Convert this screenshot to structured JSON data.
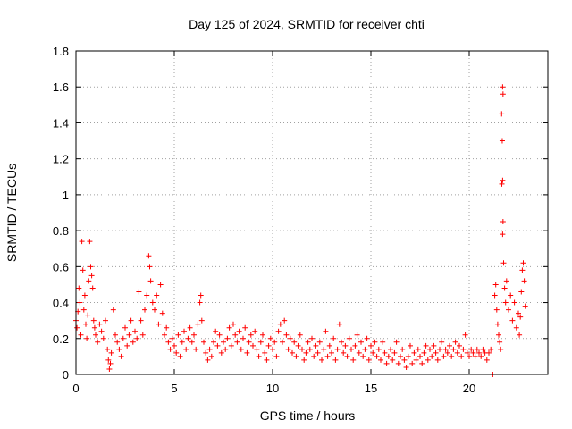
{
  "chart_data": {
    "type": "scatter",
    "title": "Day 125 of 2024, SRMTID for receiver chti",
    "xlabel": "GPS time / hours",
    "ylabel": "SRMTID / TECUs",
    "xlim": [
      0,
      24
    ],
    "ylim": [
      0,
      1.8
    ],
    "xticks": [
      "0",
      "5",
      "10",
      "15",
      "20"
    ],
    "xtick_values": [
      0,
      5,
      10,
      15,
      20
    ],
    "yticks": [
      "0",
      "0.2",
      "0.4",
      "0.6",
      "0.8",
      "1",
      "1.2",
      "1.4",
      "1.6",
      "1.8"
    ],
    "ytick_values": [
      0,
      0.2,
      0.4,
      0.6,
      0.8,
      1.0,
      1.2,
      1.4,
      1.6,
      1.8
    ],
    "grid": true,
    "marker": "+",
    "color": "#ff0000",
    "series": [
      {
        "name": "SRMTID",
        "points": [
          [
            0.0,
            0.3
          ],
          [
            0.05,
            0.26
          ],
          [
            0.1,
            0.35
          ],
          [
            0.15,
            0.48
          ],
          [
            0.2,
            0.4
          ],
          [
            0.25,
            0.22
          ],
          [
            0.3,
            0.74
          ],
          [
            0.35,
            0.58
          ],
          [
            0.4,
            0.36
          ],
          [
            0.45,
            0.44
          ],
          [
            0.5,
            0.28
          ],
          [
            0.55,
            0.2
          ],
          [
            0.6,
            0.33
          ],
          [
            0.65,
            0.52
          ],
          [
            0.7,
            0.74
          ],
          [
            0.75,
            0.6
          ],
          [
            0.8,
            0.55
          ],
          [
            0.85,
            0.48
          ],
          [
            0.9,
            0.3
          ],
          [
            0.95,
            0.26
          ],
          [
            1.0,
            0.22
          ],
          [
            1.1,
            0.18
          ],
          [
            1.2,
            0.28
          ],
          [
            1.3,
            0.24
          ],
          [
            1.4,
            0.2
          ],
          [
            1.5,
            0.3
          ],
          [
            1.6,
            0.14
          ],
          [
            1.65,
            0.08
          ],
          [
            1.7,
            0.03
          ],
          [
            1.75,
            0.06
          ],
          [
            1.8,
            0.12
          ],
          [
            1.9,
            0.36
          ],
          [
            2.0,
            0.22
          ],
          [
            2.1,
            0.18
          ],
          [
            2.2,
            0.14
          ],
          [
            2.3,
            0.1
          ],
          [
            2.4,
            0.2
          ],
          [
            2.5,
            0.26
          ],
          [
            2.6,
            0.16
          ],
          [
            2.7,
            0.22
          ],
          [
            2.8,
            0.3
          ],
          [
            2.9,
            0.18
          ],
          [
            3.0,
            0.24
          ],
          [
            3.1,
            0.2
          ],
          [
            3.2,
            0.46
          ],
          [
            3.3,
            0.3
          ],
          [
            3.4,
            0.22
          ],
          [
            3.5,
            0.36
          ],
          [
            3.6,
            0.44
          ],
          [
            3.7,
            0.66
          ],
          [
            3.75,
            0.6
          ],
          [
            3.8,
            0.52
          ],
          [
            3.9,
            0.4
          ],
          [
            4.0,
            0.36
          ],
          [
            4.1,
            0.44
          ],
          [
            4.2,
            0.28
          ],
          [
            4.3,
            0.5
          ],
          [
            4.4,
            0.34
          ],
          [
            4.5,
            0.22
          ],
          [
            4.6,
            0.26
          ],
          [
            4.7,
            0.18
          ],
          [
            4.8,
            0.14
          ],
          [
            4.9,
            0.2
          ],
          [
            5.0,
            0.16
          ],
          [
            5.1,
            0.12
          ],
          [
            5.2,
            0.22
          ],
          [
            5.3,
            0.1
          ],
          [
            5.4,
            0.18
          ],
          [
            5.5,
            0.24
          ],
          [
            5.6,
            0.14
          ],
          [
            5.7,
            0.2
          ],
          [
            5.8,
            0.26
          ],
          [
            5.9,
            0.18
          ],
          [
            6.0,
            0.22
          ],
          [
            6.1,
            0.14
          ],
          [
            6.2,
            0.28
          ],
          [
            6.3,
            0.4
          ],
          [
            6.35,
            0.44
          ],
          [
            6.4,
            0.3
          ],
          [
            6.5,
            0.18
          ],
          [
            6.6,
            0.12
          ],
          [
            6.7,
            0.08
          ],
          [
            6.8,
            0.14
          ],
          [
            6.9,
            0.1
          ],
          [
            7.0,
            0.18
          ],
          [
            7.1,
            0.24
          ],
          [
            7.2,
            0.16
          ],
          [
            7.3,
            0.22
          ],
          [
            7.4,
            0.12
          ],
          [
            7.5,
            0.18
          ],
          [
            7.6,
            0.14
          ],
          [
            7.7,
            0.2
          ],
          [
            7.8,
            0.26
          ],
          [
            7.9,
            0.16
          ],
          [
            8.0,
            0.28
          ],
          [
            8.1,
            0.22
          ],
          [
            8.2,
            0.18
          ],
          [
            8.3,
            0.24
          ],
          [
            8.4,
            0.14
          ],
          [
            8.5,
            0.2
          ],
          [
            8.6,
            0.26
          ],
          [
            8.7,
            0.12
          ],
          [
            8.8,
            0.18
          ],
          [
            8.9,
            0.22
          ],
          [
            9.0,
            0.16
          ],
          [
            9.1,
            0.24
          ],
          [
            9.2,
            0.14
          ],
          [
            9.3,
            0.1
          ],
          [
            9.4,
            0.18
          ],
          [
            9.5,
            0.22
          ],
          [
            9.6,
            0.12
          ],
          [
            9.7,
            0.08
          ],
          [
            9.8,
            0.16
          ],
          [
            9.9,
            0.2
          ],
          [
            10.0,
            0.14
          ],
          [
            10.1,
            0.18
          ],
          [
            10.2,
            0.1
          ],
          [
            10.3,
            0.24
          ],
          [
            10.4,
            0.28
          ],
          [
            10.5,
            0.18
          ],
          [
            10.6,
            0.3
          ],
          [
            10.7,
            0.22
          ],
          [
            10.8,
            0.14
          ],
          [
            10.9,
            0.2
          ],
          [
            11.0,
            0.12
          ],
          [
            11.1,
            0.18
          ],
          [
            11.2,
            0.1
          ],
          [
            11.3,
            0.16
          ],
          [
            11.4,
            0.22
          ],
          [
            11.5,
            0.14
          ],
          [
            11.6,
            0.08
          ],
          [
            11.7,
            0.12
          ],
          [
            11.8,
            0.18
          ],
          [
            11.9,
            0.14
          ],
          [
            12.0,
            0.2
          ],
          [
            12.1,
            0.1
          ],
          [
            12.2,
            0.16
          ],
          [
            12.3,
            0.12
          ],
          [
            12.4,
            0.18
          ],
          [
            12.5,
            0.08
          ],
          [
            12.6,
            0.14
          ],
          [
            12.7,
            0.24
          ],
          [
            12.8,
            0.1
          ],
          [
            12.9,
            0.16
          ],
          [
            13.0,
            0.12
          ],
          [
            13.1,
            0.2
          ],
          [
            13.2,
            0.08
          ],
          [
            13.3,
            0.14
          ],
          [
            13.4,
            0.28
          ],
          [
            13.5,
            0.18
          ],
          [
            13.6,
            0.12
          ],
          [
            13.7,
            0.16
          ],
          [
            13.8,
            0.1
          ],
          [
            13.9,
            0.2
          ],
          [
            14.0,
            0.14
          ],
          [
            14.1,
            0.08
          ],
          [
            14.2,
            0.16
          ],
          [
            14.3,
            0.22
          ],
          [
            14.4,
            0.12
          ],
          [
            14.5,
            0.18
          ],
          [
            14.6,
            0.1
          ],
          [
            14.7,
            0.14
          ],
          [
            14.8,
            0.2
          ],
          [
            14.9,
            0.08
          ],
          [
            15.0,
            0.16
          ],
          [
            15.1,
            0.12
          ],
          [
            15.2,
            0.18
          ],
          [
            15.3,
            0.1
          ],
          [
            15.4,
            0.14
          ],
          [
            15.5,
            0.08
          ],
          [
            15.6,
            0.18
          ],
          [
            15.7,
            0.12
          ],
          [
            15.8,
            0.06
          ],
          [
            15.9,
            0.1
          ],
          [
            16.0,
            0.14
          ],
          [
            16.1,
            0.08
          ],
          [
            16.2,
            0.12
          ],
          [
            16.3,
            0.18
          ],
          [
            16.4,
            0.06
          ],
          [
            16.5,
            0.1
          ],
          [
            16.6,
            0.14
          ],
          [
            16.7,
            0.08
          ],
          [
            16.8,
            0.04
          ],
          [
            16.9,
            0.1
          ],
          [
            17.0,
            0.16
          ],
          [
            17.1,
            0.06
          ],
          [
            17.2,
            0.12
          ],
          [
            17.3,
            0.08
          ],
          [
            17.4,
            0.14
          ],
          [
            17.5,
            0.1
          ],
          [
            17.6,
            0.06
          ],
          [
            17.7,
            0.12
          ],
          [
            17.8,
            0.16
          ],
          [
            17.9,
            0.08
          ],
          [
            18.0,
            0.14
          ],
          [
            18.1,
            0.1
          ],
          [
            18.2,
            0.16
          ],
          [
            18.3,
            0.12
          ],
          [
            18.4,
            0.08
          ],
          [
            18.5,
            0.14
          ],
          [
            18.6,
            0.18
          ],
          [
            18.7,
            0.1
          ],
          [
            18.8,
            0.14
          ],
          [
            18.9,
            0.12
          ],
          [
            19.0,
            0.16
          ],
          [
            19.1,
            0.1
          ],
          [
            19.2,
            0.14
          ],
          [
            19.3,
            0.18
          ],
          [
            19.4,
            0.12
          ],
          [
            19.5,
            0.16
          ],
          [
            19.6,
            0.1
          ],
          [
            19.7,
            0.14
          ],
          [
            19.8,
            0.22
          ],
          [
            19.9,
            0.12
          ],
          [
            20.0,
            0.1
          ],
          [
            20.1,
            0.14
          ],
          [
            20.2,
            0.12
          ],
          [
            20.3,
            0.1
          ],
          [
            20.4,
            0.14
          ],
          [
            20.5,
            0.12
          ],
          [
            20.6,
            0.1
          ],
          [
            20.7,
            0.14
          ],
          [
            20.8,
            0.12
          ],
          [
            20.9,
            0.08
          ],
          [
            21.0,
            0.12
          ],
          [
            21.1,
            0.14
          ],
          [
            21.2,
            0.0
          ],
          [
            21.3,
            0.44
          ],
          [
            21.35,
            0.5
          ],
          [
            21.4,
            0.36
          ],
          [
            21.45,
            0.28
          ],
          [
            21.5,
            0.22
          ],
          [
            21.55,
            0.18
          ],
          [
            21.6,
            0.14
          ],
          [
            21.65,
            1.45
          ],
          [
            21.7,
            1.6
          ],
          [
            21.72,
            1.56
          ],
          [
            21.68,
            1.3
          ],
          [
            21.66,
            1.06
          ],
          [
            21.7,
            1.08
          ],
          [
            21.72,
            0.85
          ],
          [
            21.7,
            0.78
          ],
          [
            21.75,
            0.62
          ],
          [
            21.8,
            0.48
          ],
          [
            21.85,
            0.4
          ],
          [
            21.9,
            0.52
          ],
          [
            22.0,
            0.36
          ],
          [
            22.1,
            0.44
          ],
          [
            22.2,
            0.3
          ],
          [
            22.3,
            0.4
          ],
          [
            22.4,
            0.26
          ],
          [
            22.5,
            0.34
          ],
          [
            22.55,
            0.22
          ],
          [
            22.6,
            0.32
          ],
          [
            22.65,
            0.46
          ],
          [
            22.7,
            0.58
          ],
          [
            22.75,
            0.62
          ],
          [
            22.8,
            0.52
          ],
          [
            22.85,
            0.38
          ]
        ]
      }
    ]
  }
}
